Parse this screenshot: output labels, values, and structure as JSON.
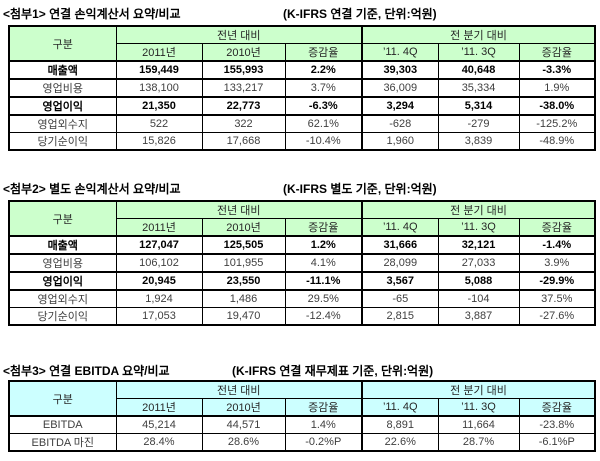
{
  "colors": {
    "green_header": "#ccffcc",
    "cyan_header": "#ccffff",
    "border": "#000000",
    "body_text": "#3f3f3f",
    "bold_text": "#000000"
  },
  "tables": [
    {
      "title": "<첨부1> 연결 손익계산서 요약/비교",
      "note": "(K-IFRS 연결 기준, 단위:억원)",
      "header_color": "#ccffcc",
      "corner_label": "구분",
      "group_headers": [
        "전년 대비",
        "전 분기 대비"
      ],
      "columns": [
        "2011년",
        "2010년",
        "증감율",
        "’11. 4Q",
        "’11. 3Q",
        "증감율"
      ],
      "rows": [
        {
          "label": "매출액",
          "values": [
            "159,449",
            "155,993",
            "2.2%",
            "39,303",
            "40,648",
            "-3.3%"
          ],
          "bold": true
        },
        {
          "label": "영업비용",
          "values": [
            "138,100",
            "133,217",
            "3.7%",
            "36,009",
            "35,334",
            "1.9%"
          ],
          "bold": false
        },
        {
          "label": "영업이익",
          "values": [
            "21,350",
            "22,773",
            "-6.3%",
            "3,294",
            "5,314",
            "-38.0%"
          ],
          "bold": true
        },
        {
          "label": "영업외수지",
          "values": [
            "522",
            "322",
            "62.1%",
            "-628",
            "-279",
            "-125.2%"
          ],
          "bold": false
        },
        {
          "label": "당기순이익",
          "values": [
            "15,826",
            "17,668",
            "-10.4%",
            "1,960",
            "3,839",
            "-48.9%"
          ],
          "bold": false
        }
      ]
    },
    {
      "title": "<첨부2> 별도 손익계산서 요약/비교",
      "note": "(K-IFRS 별도 기준, 단위:억원)",
      "header_color": "#ccffcc",
      "corner_label": "구분",
      "group_headers": [
        "전년 대비",
        "전 분기 대비"
      ],
      "columns": [
        "2011년",
        "2010년",
        "증감율",
        "’11. 4Q",
        "’11. 3Q",
        "증감율"
      ],
      "rows": [
        {
          "label": "매출액",
          "values": [
            "127,047",
            "125,505",
            "1.2%",
            "31,666",
            "32,121",
            "-1.4%"
          ],
          "bold": true
        },
        {
          "label": "영업비용",
          "values": [
            "106,102",
            "101,955",
            "4.1%",
            "28,099",
            "27,033",
            "3.9%"
          ],
          "bold": false
        },
        {
          "label": "영업이익",
          "values": [
            "20,945",
            "23,550",
            "-11.1%",
            "3,567",
            "5,088",
            "-29.9%"
          ],
          "bold": true
        },
        {
          "label": "영업외수지",
          "values": [
            "1,924",
            "1,486",
            "29.5%",
            "-65",
            "-104",
            "37.5%"
          ],
          "bold": false
        },
        {
          "label": "당기순이익",
          "values": [
            "17,053",
            "19,470",
            "-12.4%",
            "2,815",
            "3,887",
            "-27.6%"
          ],
          "bold": false
        }
      ]
    },
    {
      "title": "<첨부3> 연결 EBITDA 요약/비교",
      "note": "(K-IFRS 연결 재무제표 기준, 단위:억원)",
      "header_color": "#ccffff",
      "corner_label": "구분",
      "group_headers": [
        "전년 대비",
        "전 분기 대비"
      ],
      "columns": [
        "2011년",
        "2010년",
        "증감율",
        "’11. 4Q",
        "’11. 3Q",
        "증감율"
      ],
      "rows": [
        {
          "label": "EBITDA",
          "values": [
            "45,214",
            "44,571",
            "1.4%",
            "8,891",
            "11,664",
            "-23.8%"
          ],
          "bold": false
        },
        {
          "label": "EBITDA 마진",
          "values": [
            "28.4%",
            "28.6%",
            "-0.2%P",
            "22.6%",
            "28.7%",
            "-6.1%P"
          ],
          "bold": false
        }
      ]
    }
  ]
}
